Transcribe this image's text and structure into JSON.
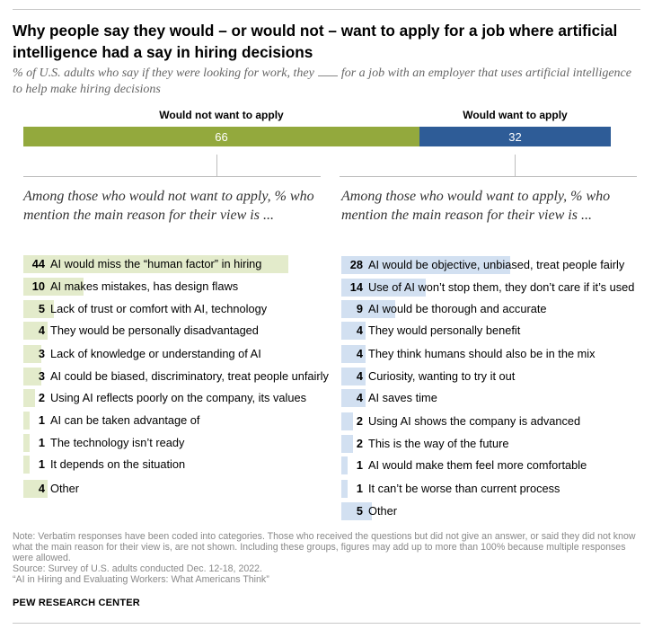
{
  "title": "Why people say they would – or would not – want to apply for a job where artificial intelligence had a say in hiring decisions",
  "subtitle": {
    "before": "% of U.S. adults who say if they were looking for work, they",
    "after": "for a job with an employer that uses artificial intelligence to help make hiring decisions"
  },
  "colors": {
    "not_apply": "#93a93d",
    "not_apply_light": "#e3ebcb",
    "apply": "#2e5c97",
    "apply_light": "#d2e0f1"
  },
  "chart_data": [
    {
      "type": "bar",
      "orientation": "horizontal-stacked",
      "categories": [
        "Would not want to apply",
        "Would want to apply"
      ],
      "values": [
        66,
        32
      ],
      "xlim": [
        0,
        100
      ]
    },
    {
      "type": "bar",
      "orientation": "horizontal",
      "title": "Among those who would not want to apply, % who mention the main reason for their view is ...",
      "categories": [
        "AI would miss the “human factor” in hiring",
        "AI makes mistakes, has design flaws",
        "Lack of trust or comfort with AI, technology",
        "They would be personally disadvantaged",
        "Lack of knowledge or understanding of AI",
        "AI could be biased, discriminatory, treat people unfairly",
        "Using AI reflects poorly on the company, its values",
        "AI can be taken advantage of",
        "The technology isn’t ready",
        "It depends on the situation",
        "Other"
      ],
      "values": [
        44,
        10,
        5,
        4,
        3,
        3,
        2,
        1,
        1,
        1,
        4
      ],
      "xlim": [
        0,
        44
      ]
    },
    {
      "type": "bar",
      "orientation": "horizontal",
      "title": "Among those who would want to apply, % who mention the main reason for their view is ...",
      "categories": [
        "AI would be objective, unbiased, treat people fairly",
        "Use of AI won’t stop them, they don’t care if it’s used",
        "AI would be thorough and accurate",
        "They would personally benefit",
        "They think humans should also be in the mix",
        "Curiosity, wanting to try it out",
        "AI saves time",
        "Using AI shows the company is advanced",
        "This is the way of the future",
        "AI would make them feel more comfortable",
        "It can’t be worse than current process",
        "Other"
      ],
      "values": [
        28,
        14,
        9,
        4,
        4,
        4,
        4,
        2,
        2,
        1,
        1,
        5
      ],
      "xlim": [
        0,
        44
      ]
    }
  ],
  "note": "Note: Verbatim responses have been coded into categories. Those who received the questions but did not give an answer, or said they did not know what the main reason for their view is, are not shown. Including these groups, figures may add up to more than 100% because multiple responses were allowed.",
  "source": "Source: Survey of U.S. adults conducted Dec. 12-18, 2022.",
  "report": "“AI in Hiring and Evaluating Workers: What Americans Think”",
  "brand": "PEW RESEARCH CENTER"
}
